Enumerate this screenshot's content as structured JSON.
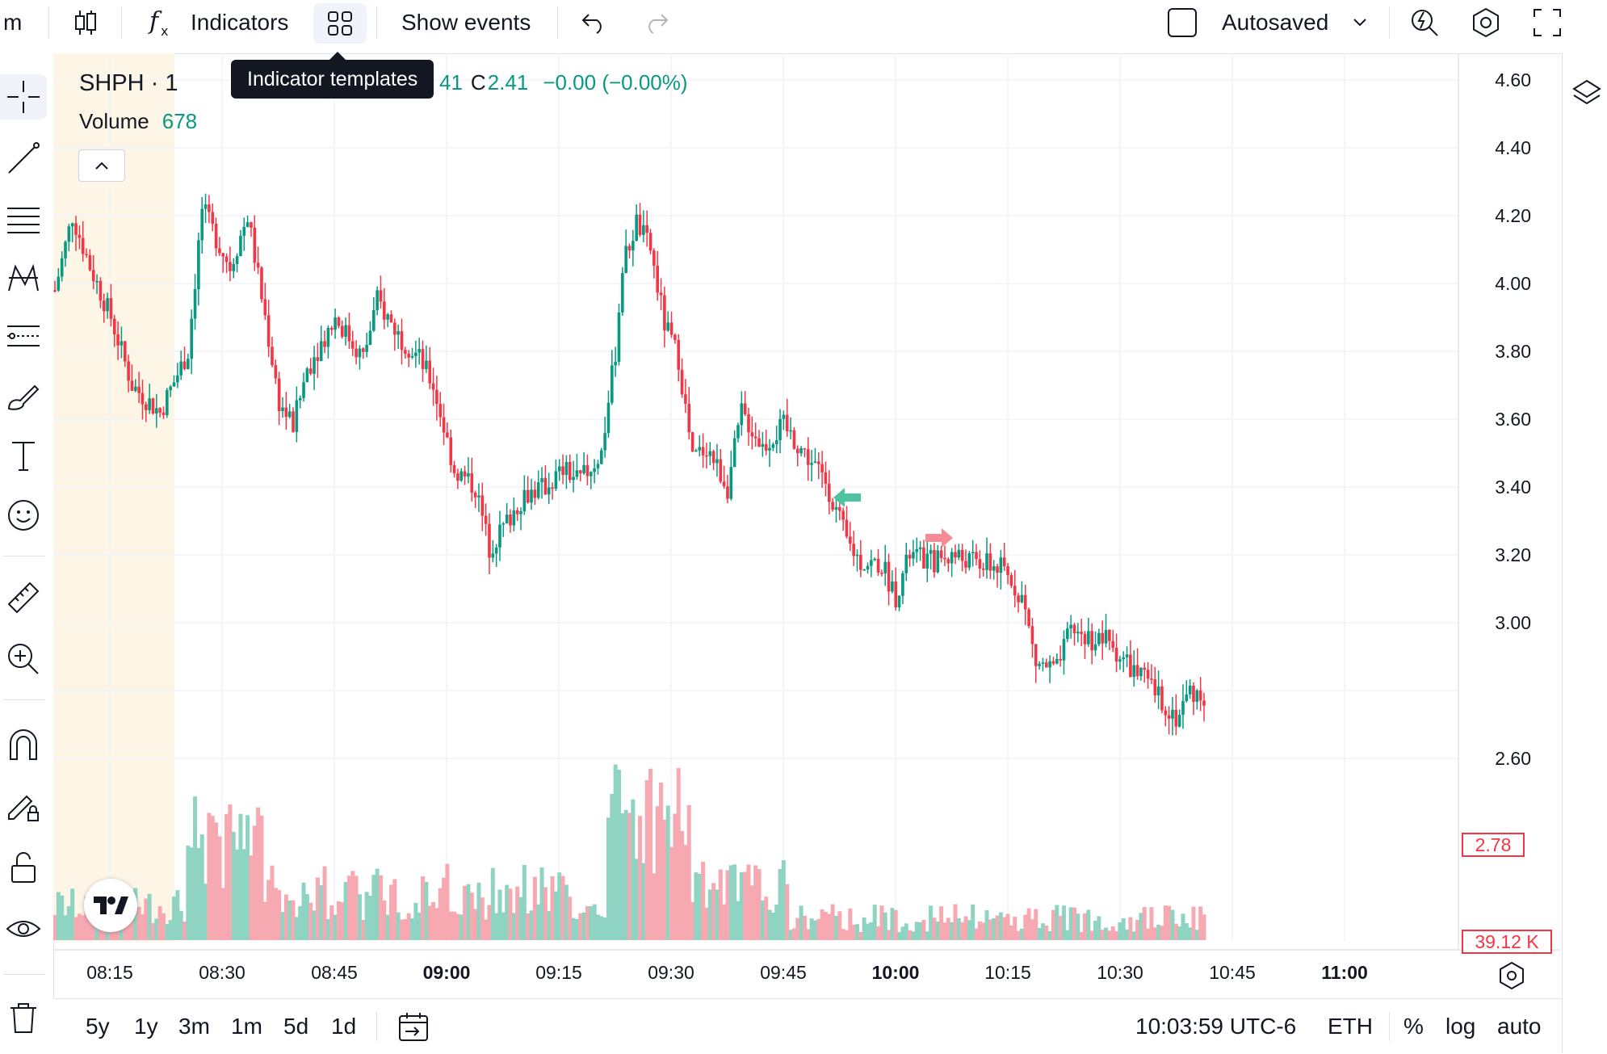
{
  "toolbar": {
    "interval_label": "m",
    "indicators_label": "Indicators",
    "show_events_label": "Show events",
    "autosaved_label": "Autosaved",
    "tooltip": "Indicator templates"
  },
  "legend": {
    "symbol": "SHPH · 1",
    "ohlc_partial": "41",
    "close_key": "C",
    "close_value": "2.41",
    "change": "−0.00 (−0.00%)",
    "volume_label": "Volume",
    "volume_value": "678"
  },
  "price_axis": {
    "labels": [
      "4.60",
      "4.40",
      "4.20",
      "4.00",
      "3.80",
      "3.60",
      "3.40",
      "3.20",
      "3.00",
      "2.60"
    ],
    "last_price": "2.78",
    "last_volume": "39.12 K"
  },
  "time_axis": {
    "labels": [
      "08:15",
      "08:30",
      "08:45",
      "09:00",
      "09:15",
      "09:30",
      "09:45",
      "10:00",
      "10:15",
      "10:30",
      "10:45",
      "11:00"
    ],
    "bold": [
      "09:00",
      "10:00",
      "11:00"
    ]
  },
  "bottom": {
    "ranges": [
      "5y",
      "1y",
      "3m",
      "1m",
      "5d",
      "1d"
    ],
    "clock": "10:03:59 UTC-6",
    "session": "ETH",
    "percent": "%",
    "log": "log",
    "auto": "auto"
  },
  "colors": {
    "up": "#089981",
    "down": "#f23645",
    "up_volume": "#8fd4c2",
    "down_volume": "#f7a9b1",
    "premarket": "#fdf5e6"
  },
  "icons": {
    "top": [
      "candles-icon",
      "fx-icon",
      "templates-icon",
      "undo-icon",
      "redo-icon",
      "checkbox-icon",
      "chevron-down-icon",
      "quick-search-icon",
      "settings-icon",
      "fullscreen-icon"
    ],
    "left": [
      "crosshair-icon",
      "trend-line-icon",
      "fib-icon",
      "pattern-icon",
      "forecast-icon",
      "brush-icon",
      "text-icon",
      "emoji-icon",
      "ruler-icon",
      "zoom-in-icon",
      "magnet-icon",
      "lock-drawing-icon",
      "lock-icon",
      "eye-icon",
      "trash-icon"
    ]
  }
}
